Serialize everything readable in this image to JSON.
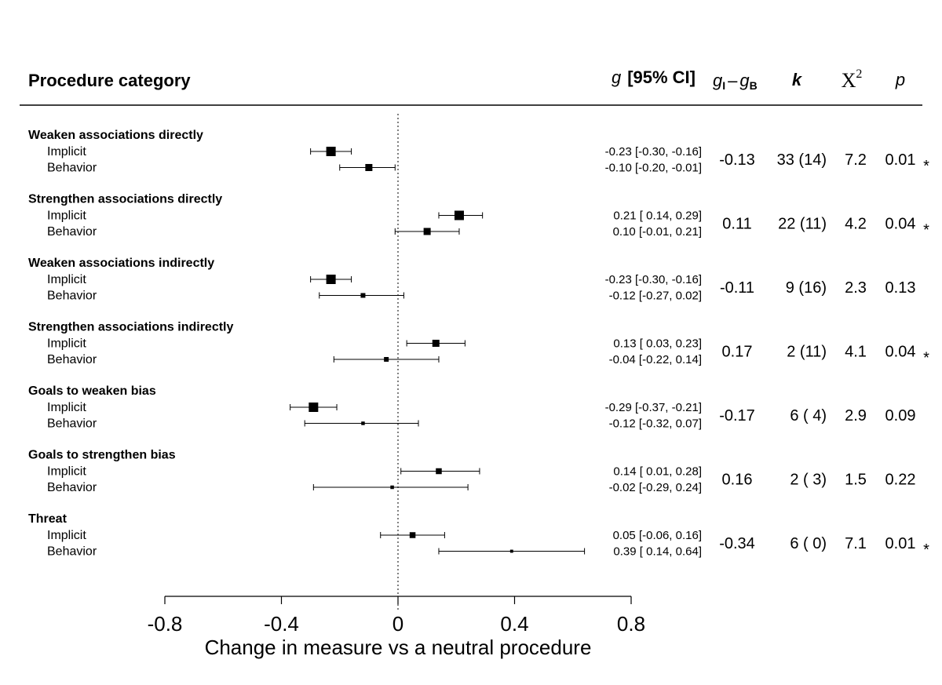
{
  "header": {
    "category": "Procedure category",
    "g_letter": "g",
    "ci_label": "[95% CI]",
    "diff_g1": "g",
    "diff_sub1": "I",
    "diff_dash": "–",
    "diff_g2": "g",
    "diff_sub2": "B",
    "k": "k",
    "chi": "X",
    "chi_sup": "2",
    "p": "p"
  },
  "chart_data": {
    "type": "forest",
    "xlabel": "Change in measure vs a neutral procedure",
    "xlim": [
      -0.8,
      0.8
    ],
    "ticks": [
      -0.8,
      -0.4,
      0,
      0.4,
      0.8
    ],
    "tick_labels": [
      "-0.8",
      "-0.4",
      "0",
      "0.4",
      "0.8"
    ],
    "reference_line": 0,
    "groups": [
      {
        "category": "Weaken associations directly",
        "rows": [
          {
            "label": "Implicit",
            "g": -0.23,
            "lo": -0.3,
            "hi": -0.16,
            "ci_text": "-0.23 [-0.30, -0.16]",
            "weight": 3
          },
          {
            "label": "Behavior",
            "g": -0.1,
            "lo": -0.2,
            "hi": -0.01,
            "ci_text": "-0.10 [-0.20, -0.01]",
            "weight": 2
          }
        ],
        "diff": "-0.13",
        "k": "33 (14)",
        "chi2": "7.2",
        "p": "0.01",
        "sig": "*"
      },
      {
        "category": "Strengthen associations directly",
        "rows": [
          {
            "label": "Implicit",
            "g": 0.21,
            "lo": 0.14,
            "hi": 0.29,
            "ci_text": "0.21 [ 0.14,  0.29]",
            "weight": 3
          },
          {
            "label": "Behavior",
            "g": 0.1,
            "lo": -0.01,
            "hi": 0.21,
            "ci_text": "0.10 [-0.01,  0.21]",
            "weight": 2
          }
        ],
        "diff": "0.11",
        "k": "22 (11)",
        "chi2": "4.2",
        "p": "0.04",
        "sig": "*"
      },
      {
        "category": "Weaken associations indirectly",
        "rows": [
          {
            "label": "Implicit",
            "g": -0.23,
            "lo": -0.3,
            "hi": -0.16,
            "ci_text": "-0.23 [-0.30, -0.16]",
            "weight": 3
          },
          {
            "label": "Behavior",
            "g": -0.12,
            "lo": -0.27,
            "hi": 0.02,
            "ci_text": "-0.12 [-0.27,  0.02]",
            "weight": 1
          }
        ],
        "diff": "-0.11",
        "k": "9 (16)",
        "chi2": "2.3",
        "p": "0.13",
        "sig": ""
      },
      {
        "category": "Strengthen associations indirectly",
        "rows": [
          {
            "label": "Implicit",
            "g": 0.13,
            "lo": 0.03,
            "hi": 0.23,
            "ci_text": "0.13 [ 0.03,  0.23]",
            "weight": 2
          },
          {
            "label": "Behavior",
            "g": -0.04,
            "lo": -0.22,
            "hi": 0.14,
            "ci_text": "-0.04 [-0.22,  0.14]",
            "weight": 1
          }
        ],
        "diff": "0.17",
        "k": "2 (11)",
        "chi2": "4.1",
        "p": "0.04",
        "sig": "*"
      },
      {
        "category": "Goals to weaken bias",
        "rows": [
          {
            "label": "Implicit",
            "g": -0.29,
            "lo": -0.37,
            "hi": -0.21,
            "ci_text": "-0.29 [-0.37, -0.21]",
            "weight": 3
          },
          {
            "label": "Behavior",
            "g": -0.12,
            "lo": -0.32,
            "hi": 0.07,
            "ci_text": "-0.12 [-0.32,  0.07]",
            "weight": 0.5
          }
        ],
        "diff": "-0.17",
        "k": "6 ( 4)",
        "chi2": "2.9",
        "p": "0.09",
        "sig": ""
      },
      {
        "category": "Goals to strengthen bias",
        "rows": [
          {
            "label": "Implicit",
            "g": 0.14,
            "lo": 0.01,
            "hi": 0.28,
            "ci_text": "0.14 [ 0.01,  0.28]",
            "weight": 1.5
          },
          {
            "label": "Behavior",
            "g": -0.02,
            "lo": -0.29,
            "hi": 0.24,
            "ci_text": "-0.02 [-0.29,  0.24]",
            "weight": 0.5
          }
        ],
        "diff": "0.16",
        "k": "2 ( 3)",
        "chi2": "1.5",
        "p": "0.22",
        "sig": ""
      },
      {
        "category": "Threat",
        "rows": [
          {
            "label": "Implicit",
            "g": 0.05,
            "lo": -0.06,
            "hi": 0.16,
            "ci_text": "0.05 [-0.06,  0.16]",
            "weight": 1.5
          },
          {
            "label": "Behavior",
            "g": 0.39,
            "lo": 0.14,
            "hi": 0.64,
            "ci_text": "0.39 [ 0.14,  0.64]",
            "weight": 0.3
          }
        ],
        "diff": "-0.34",
        "k": "6 ( 0)",
        "chi2": "7.1",
        "p": "0.01",
        "sig": "*"
      }
    ]
  }
}
